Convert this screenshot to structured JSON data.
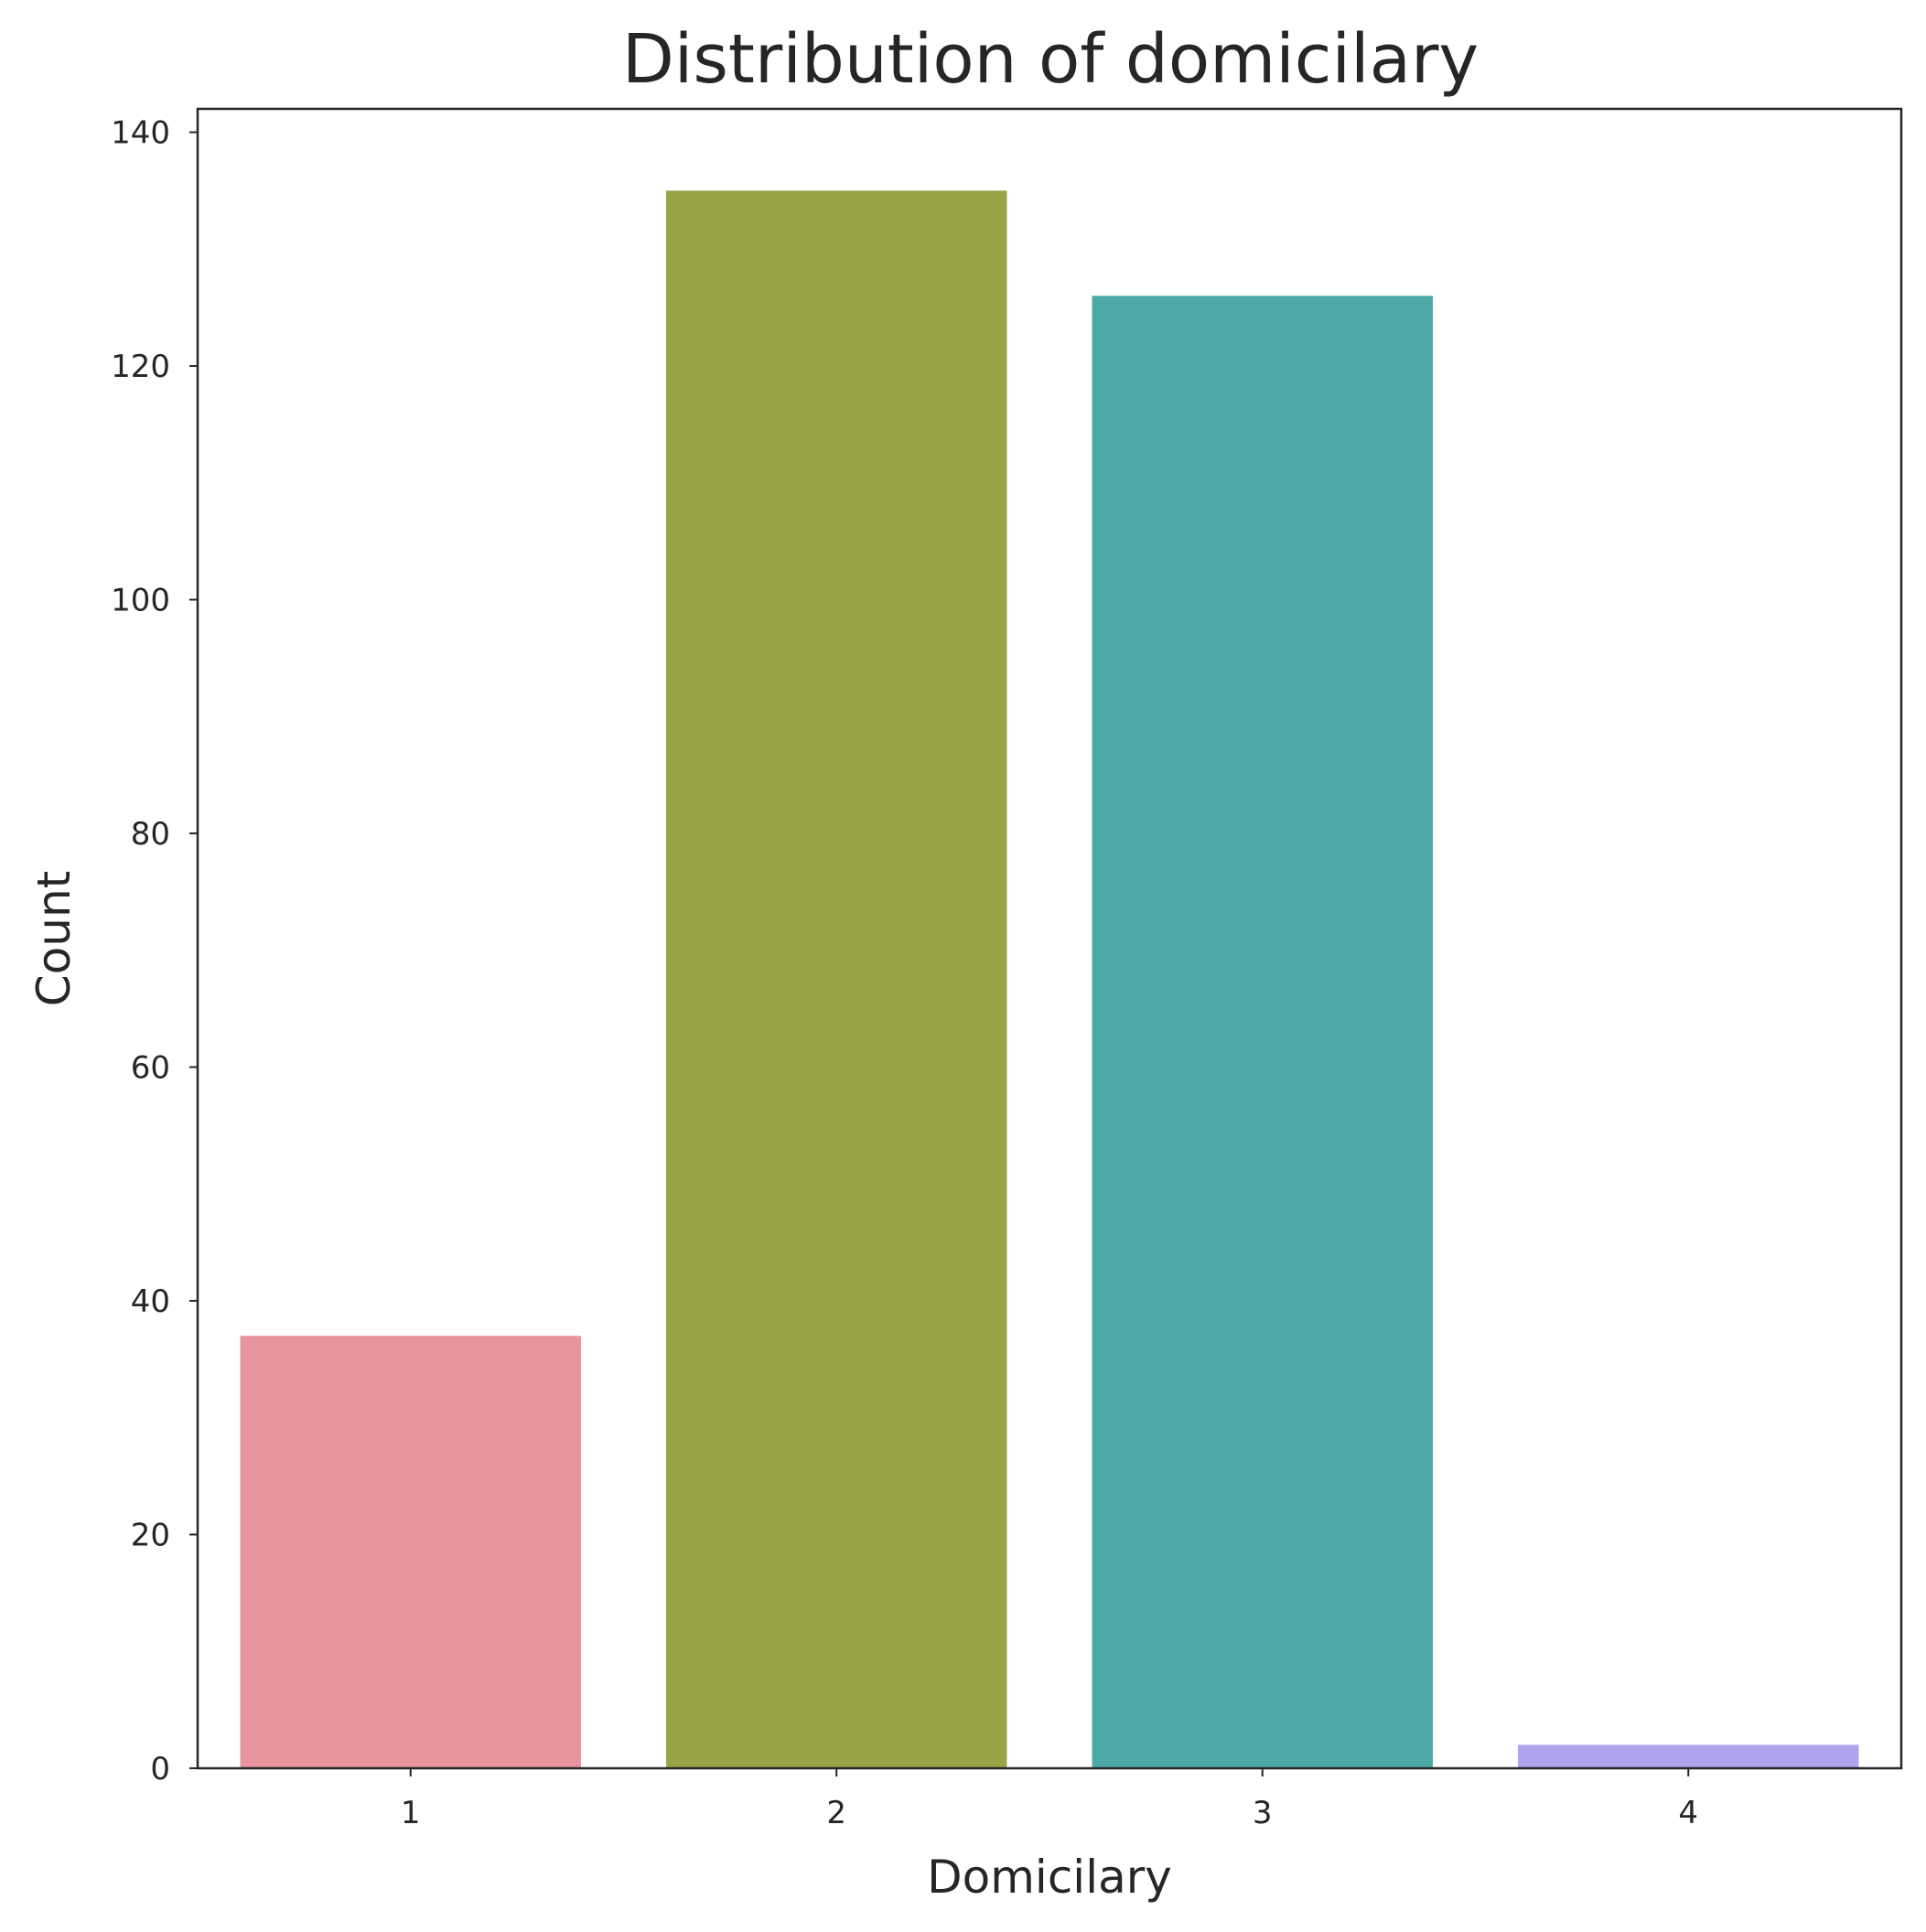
{
  "chart_data": {
    "type": "bar",
    "title": "Distribution of domicilary",
    "xlabel": "Domicilary",
    "ylabel": "Count",
    "categories": [
      "1",
      "2",
      "3",
      "4"
    ],
    "values": [
      37,
      135,
      126,
      2
    ],
    "colors": [
      "#e8949f",
      "#98a447",
      "#4ca9a6",
      "#b0a2ec"
    ],
    "ylim": [
      0,
      142
    ],
    "yticks": [
      0,
      20,
      40,
      60,
      80,
      100,
      120,
      140
    ],
    "grid": false,
    "legend": "none"
  }
}
